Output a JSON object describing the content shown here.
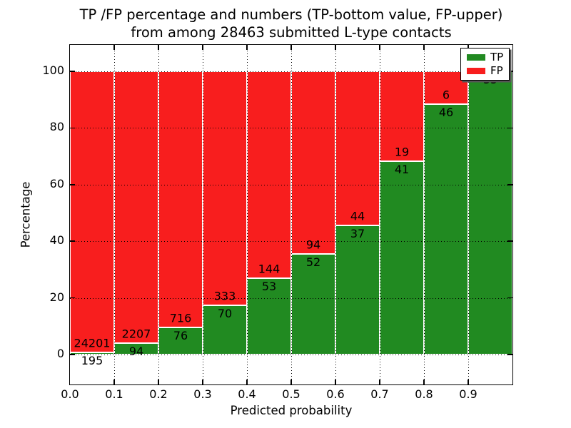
{
  "title": {
    "line1": "TP /FP percentage and numbers (TP-bottom value, FP-upper)",
    "line2": "from among 28463 submitted L-type contacts"
  },
  "axes": {
    "xlabel": "Predicted probability",
    "ylabel": "Percentage",
    "xtick_labels": [
      "0.0",
      "0.1",
      "0.2",
      "0.3",
      "0.4",
      "0.5",
      "0.6",
      "0.7",
      "0.8",
      "0.9"
    ],
    "ytick_labels": [
      "0",
      "20",
      "40",
      "60",
      "80",
      "100"
    ]
  },
  "legend": {
    "position": "upper right",
    "items": [
      {
        "label": "TP",
        "color_key": "tp"
      },
      {
        "label": "FP",
        "color_key": "fp"
      }
    ]
  },
  "colors": {
    "tp": "#218a21",
    "fp": "#f81e1e",
    "axis": "#000000",
    "bar_edge": "#ffffff",
    "background": "#ffffff",
    "grid": "#000000"
  },
  "chart_data": {
    "type": "bar",
    "stacked": true,
    "normalized_to_percent": true,
    "title": "TP /FP percentage and numbers (TP-bottom value, FP-upper) from among 28463 submitted L-type contacts",
    "xlabel": "Predicted probability",
    "ylabel": "Percentage",
    "total_contacts": 28463,
    "bin_width": 0.1,
    "bins": [
      {
        "range": "0.0-0.1",
        "tp": 195,
        "fp": 24201,
        "tp_percent": 0.8
      },
      {
        "range": "0.1-0.2",
        "tp": 94,
        "fp": 2207,
        "tp_percent": 4.1
      },
      {
        "range": "0.2-0.3",
        "tp": 76,
        "fp": 716,
        "tp_percent": 9.6
      },
      {
        "range": "0.3-0.4",
        "tp": 70,
        "fp": 333,
        "tp_percent": 17.4
      },
      {
        "range": "0.4-0.5",
        "tp": 53,
        "fp": 144,
        "tp_percent": 26.9
      },
      {
        "range": "0.5-0.6",
        "tp": 52,
        "fp": 94,
        "tp_percent": 35.6
      },
      {
        "range": "0.6-0.7",
        "tp": 37,
        "fp": 44,
        "tp_percent": 45.7
      },
      {
        "range": "0.7-0.8",
        "tp": 41,
        "fp": 19,
        "tp_percent": 68.3
      },
      {
        "range": "0.8-0.9",
        "tp": 46,
        "fp": 6,
        "tp_percent": 88.5
      },
      {
        "range": "0.9-1.0",
        "tp": 35,
        "fp": 0,
        "tp_percent": 100.0
      }
    ],
    "series": [
      {
        "name": "TP",
        "values": [
          195,
          94,
          76,
          70,
          53,
          52,
          37,
          41,
          46,
          35
        ]
      },
      {
        "name": "FP",
        "values": [
          24201,
          2207,
          716,
          333,
          144,
          94,
          44,
          19,
          6,
          0
        ]
      }
    ],
    "yticks": [
      0,
      20,
      40,
      60,
      80,
      100
    ],
    "xticks": [
      0.0,
      0.1,
      0.2,
      0.3,
      0.4,
      0.5,
      0.6,
      0.7,
      0.8,
      0.9
    ],
    "xlim": [
      0.0,
      1.0
    ],
    "ylim_percent": [
      -11,
      110
    ],
    "grid": "dotted black, both axes, drawn over bars",
    "annotation_rule": "TP count below segment boundary, FP count above it",
    "legend_position": "upper right"
  }
}
